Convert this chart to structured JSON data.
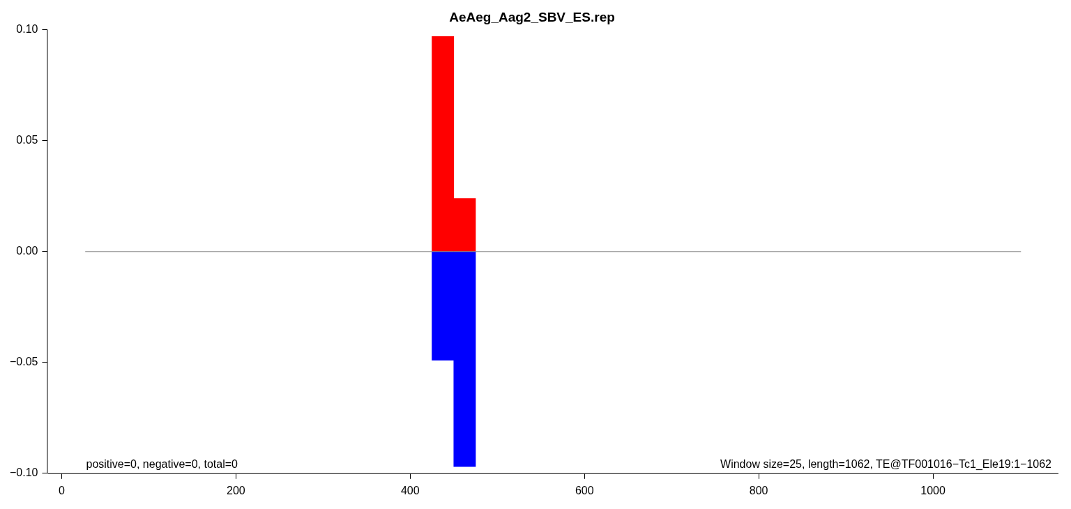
{
  "chart_data": {
    "type": "bar",
    "title": "AeAeg_Aag2_SBV_ES.rep",
    "x": [
      437.5,
      462.5
    ],
    "series": [
      {
        "color": "#ff0000",
        "values": [
          0.097,
          0.024
        ]
      },
      {
        "color": "#0000ff",
        "values": [
          -0.049,
          -0.097
        ]
      },
      {
        "type": "line",
        "color": "#808080",
        "x": [
          27,
          1101
        ],
        "values": [
          0,
          0
        ]
      }
    ],
    "stacked": true,
    "xlim": [
      -16,
      1144
    ],
    "ylim": [
      -0.1,
      0.1
    ],
    "xticks": [
      0,
      200,
      400,
      600,
      800,
      1000
    ],
    "yticks": [
      {
        "value": -0.1,
        "label": "−0.10"
      },
      {
        "value": -0.05,
        "label": "−0.05"
      },
      {
        "value": 0,
        "label": "0.00"
      },
      {
        "value": 0.05,
        "label": "0.05"
      },
      {
        "value": 0.1,
        "label": "0.10"
      }
    ],
    "annotations": [
      "positive=0, negative=0, total=0",
      "Window size=25, length=1062, TE@TF001016−Tc1_Ele19:1−1062"
    ]
  }
}
